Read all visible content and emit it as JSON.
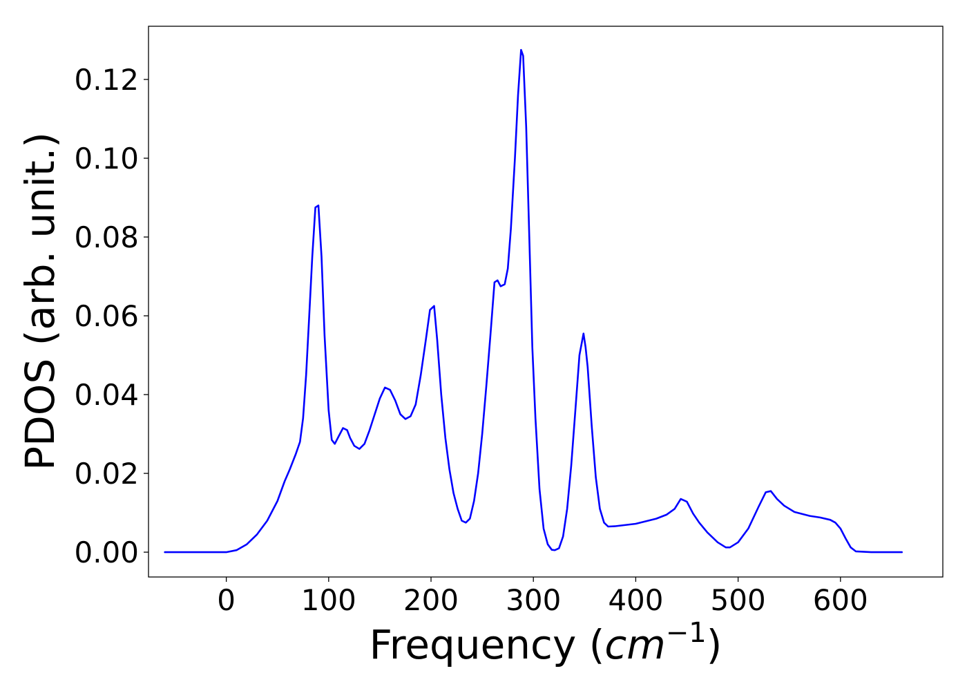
{
  "chart_data": {
    "type": "line",
    "title": "",
    "xlabel": "Frequency (cm⁻¹)",
    "xlabel_parts": {
      "prefix": "Frequency (",
      "math": "cm",
      "exponent": "−1",
      "suffix": ")"
    },
    "ylabel": "PDOS (arb. unit.)",
    "xlim": [
      -76,
      700
    ],
    "ylim": [
      -0.0063,
      0.1335
    ],
    "xticks": [
      0,
      100,
      200,
      300,
      400,
      500,
      600
    ],
    "xtick_labels": [
      "0",
      "100",
      "200",
      "300",
      "400",
      "500",
      "600"
    ],
    "yticks": [
      0.0,
      0.02,
      0.04,
      0.06,
      0.08,
      0.1,
      0.12
    ],
    "ytick_labels": [
      "0.00",
      "0.02",
      "0.04",
      "0.06",
      "0.08",
      "0.10",
      "0.12"
    ],
    "grid": false,
    "legend": "none",
    "series": [
      {
        "color": "#0000ff",
        "x": [
          -60,
          0,
          10,
          20,
          30,
          40,
          50,
          57,
          62,
          68,
          72,
          75,
          78,
          81,
          84,
          87,
          90,
          93,
          96,
          100,
          103,
          106,
          110,
          114,
          118,
          121,
          125,
          130,
          135,
          140,
          145,
          150,
          155,
          160,
          165,
          170,
          175,
          180,
          185,
          190,
          195,
          199,
          203,
          206,
          210,
          214,
          218,
          222,
          226,
          230,
          234,
          238,
          242,
          246,
          250,
          254,
          258,
          262,
          265,
          268,
          272,
          275,
          278,
          282,
          285,
          288,
          290,
          293,
          296,
          299,
          302,
          306,
          310,
          314,
          318,
          321,
          325,
          329,
          333,
          337,
          341,
          345,
          349,
          351,
          353,
          357,
          361,
          365,
          369,
          373,
          380,
          400,
          420,
          430,
          438,
          444,
          450,
          456,
          462,
          470,
          480,
          488,
          492,
          500,
          510,
          520,
          527,
          532,
          538,
          545,
          555,
          570,
          580,
          590,
          595,
          600,
          605,
          610,
          615,
          630,
          660
        ],
        "y": [
          0.0,
          0.0,
          0.0005,
          0.002,
          0.0045,
          0.008,
          0.013,
          0.018,
          0.021,
          0.025,
          0.028,
          0.034,
          0.045,
          0.06,
          0.075,
          0.0875,
          0.088,
          0.075,
          0.055,
          0.036,
          0.0285,
          0.0275,
          0.0295,
          0.0315,
          0.031,
          0.029,
          0.027,
          0.0262,
          0.0275,
          0.031,
          0.035,
          0.039,
          0.0418,
          0.0412,
          0.0385,
          0.035,
          0.0338,
          0.0345,
          0.0375,
          0.045,
          0.054,
          0.0615,
          0.0625,
          0.054,
          0.04,
          0.029,
          0.021,
          0.015,
          0.011,
          0.008,
          0.0075,
          0.0085,
          0.013,
          0.02,
          0.03,
          0.042,
          0.055,
          0.0685,
          0.069,
          0.0675,
          0.068,
          0.072,
          0.082,
          0.1,
          0.116,
          0.1275,
          0.126,
          0.108,
          0.08,
          0.052,
          0.034,
          0.016,
          0.006,
          0.002,
          0.0006,
          0.0005,
          0.001,
          0.004,
          0.011,
          0.022,
          0.036,
          0.05,
          0.0555,
          0.052,
          0.047,
          0.032,
          0.019,
          0.011,
          0.0075,
          0.0065,
          0.0066,
          0.0072,
          0.0085,
          0.0095,
          0.011,
          0.0135,
          0.0128,
          0.0098,
          0.0075,
          0.005,
          0.0025,
          0.0012,
          0.0012,
          0.0025,
          0.006,
          0.0115,
          0.0152,
          0.0155,
          0.0135,
          0.0118,
          0.0102,
          0.0092,
          0.0088,
          0.0082,
          0.0075,
          0.006,
          0.0035,
          0.0012,
          0.0002,
          0.0,
          0.0
        ]
      }
    ]
  }
}
